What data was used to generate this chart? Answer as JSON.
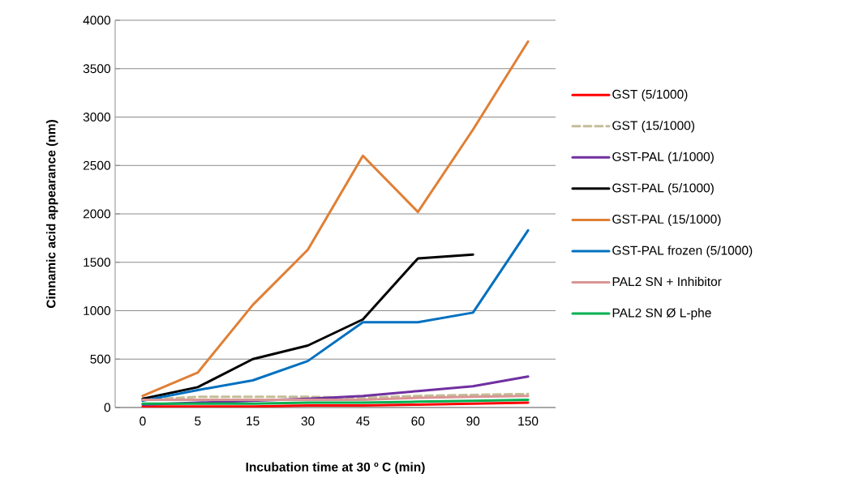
{
  "chart_data": {
    "type": "line",
    "xlabel": "Incubation time at 30 º C (min)",
    "ylabel": "Cinnamic acid appearance (nm)",
    "categories": [
      "0",
      "5",
      "15",
      "30",
      "45",
      "60",
      "90",
      "150"
    ],
    "ylim": [
      0,
      4000
    ],
    "yticks": [
      0,
      500,
      1000,
      1500,
      2000,
      2500,
      3000,
      3500,
      4000
    ],
    "grid": "y",
    "legend": "right",
    "marker": "none",
    "line_style": "solid",
    "series": [
      {
        "name": "GST (5/1000)",
        "color": "#ff0000",
        "values": [
          10,
          10,
          10,
          20,
          20,
          30,
          40,
          50
        ]
      },
      {
        "name": "GST (15/1000)",
        "color": "#c4bd97",
        "line_style": "dashed",
        "values": [
          80,
          110,
          110,
          110,
          100,
          120,
          130,
          140
        ]
      },
      {
        "name": "GST-PAL (1/1000)",
        "color": "#7030a0",
        "values": [
          30,
          50,
          70,
          90,
          120,
          170,
          220,
          320
        ]
      },
      {
        "name": "GST-PAL (5/1000)",
        "color": "#000000",
        "values": [
          90,
          210,
          500,
          640,
          910,
          1540,
          1580,
          null
        ]
      },
      {
        "name": "GST-PAL (15/1000)",
        "color": "#e07f35",
        "values": [
          120,
          360,
          1060,
          1630,
          2600,
          2020,
          2870,
          3780
        ]
      },
      {
        "name": "GST-PAL frozen (5/1000)",
        "color": "#0070c0",
        "values": [
          70,
          180,
          280,
          480,
          880,
          880,
          980,
          1830
        ]
      },
      {
        "name": "PAL2 SN + Inhibitor",
        "color": "#d99594",
        "values": [
          80,
          80,
          80,
          80,
          80,
          100,
          110,
          120
        ]
      },
      {
        "name": "PAL2 SN Ø L-phe",
        "color": "#00b050",
        "values": [
          40,
          40,
          40,
          50,
          50,
          60,
          70,
          80
        ]
      }
    ]
  }
}
